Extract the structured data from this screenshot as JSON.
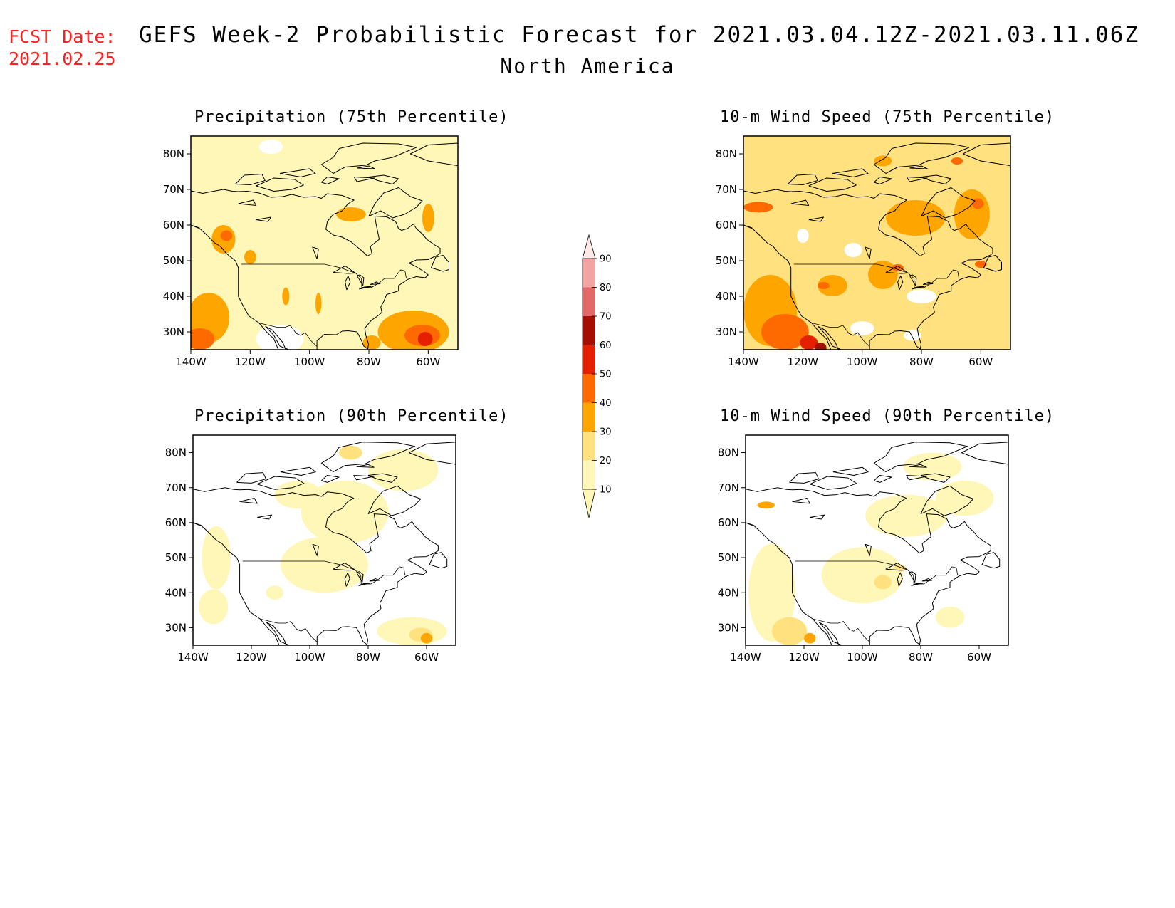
{
  "header": {
    "fcst_date_label": "FCST Date:",
    "fcst_date_value": "2021.02.25",
    "title": "GEFS Week-2 Probabilistic Forecast for 2021.03.04.12Z-2021.03.11.06Z",
    "subtitle": "North America"
  },
  "colors": {
    "fcst_date": "#ff2020",
    "scale": [
      "#ffffff",
      "#fff7b8",
      "#ffe27f",
      "#ffa500",
      "#ff6a00",
      "#e52000",
      "#a50f00",
      "#e36868",
      "#f4a3a3",
      "#fde8e8"
    ]
  },
  "colorbar": {
    "levels": [
      "10",
      "20",
      "30",
      "40",
      "50",
      "60",
      "70",
      "80",
      "90"
    ]
  },
  "axes": {
    "lon_labels": [
      "140W",
      "120W",
      "100W",
      "80W",
      "60W"
    ],
    "lat_labels": [
      "30N",
      "40N",
      "50N",
      "60N",
      "70N",
      "80N"
    ],
    "lon_values": [
      -140,
      -120,
      -100,
      -80,
      -60
    ],
    "lat_values": [
      30,
      40,
      50,
      60,
      70,
      80
    ],
    "lon_range": [
      -140,
      -50
    ],
    "lat_range": [
      25,
      85
    ]
  },
  "panels": [
    {
      "id": "precip75",
      "title": "Precipitation (75th Percentile)",
      "base_level": 1,
      "blobs": [
        {
          "lon": -134,
          "lat": 34,
          "rx": 7,
          "ry": 7,
          "level": 3
        },
        {
          "lon": -137,
          "lat": 28,
          "rx": 5,
          "ry": 3,
          "level": 4
        },
        {
          "lon": -129,
          "lat": 56,
          "rx": 4,
          "ry": 4,
          "level": 3
        },
        {
          "lon": -128,
          "lat": 57,
          "rx": 2,
          "ry": 1.5,
          "level": 4
        },
        {
          "lon": -86,
          "lat": 63,
          "rx": 5,
          "ry": 2,
          "level": 3
        },
        {
          "lon": -60,
          "lat": 62,
          "rx": 2,
          "ry": 4,
          "level": 3
        },
        {
          "lon": -65,
          "lat": 30,
          "rx": 12,
          "ry": 6,
          "level": 3
        },
        {
          "lon": -62,
          "lat": 29,
          "rx": 6,
          "ry": 3,
          "level": 4
        },
        {
          "lon": -61,
          "lat": 28,
          "rx": 2.5,
          "ry": 2,
          "level": 5
        },
        {
          "lon": -79,
          "lat": 27,
          "rx": 3,
          "ry": 2,
          "level": 3
        },
        {
          "lon": -108,
          "lat": 40,
          "rx": 1.2,
          "ry": 2.5,
          "level": 3
        },
        {
          "lon": -97,
          "lat": 38,
          "rx": 1,
          "ry": 3,
          "level": 3
        },
        {
          "lon": -120,
          "lat": 51,
          "rx": 2,
          "ry": 2,
          "level": 3
        }
      ],
      "holes": [
        {
          "lon": -110,
          "lat": 28,
          "rx": 8,
          "ry": 4
        },
        {
          "lon": -113,
          "lat": 82,
          "rx": 4,
          "ry": 2
        }
      ]
    },
    {
      "id": "wind75",
      "title": "10-m Wind Speed (75th Percentile)",
      "base_level": 2,
      "blobs": [
        {
          "lon": -135,
          "lat": 65,
          "rx": 5,
          "ry": 1.5,
          "level": 4
        },
        {
          "lon": -131,
          "lat": 36,
          "rx": 9,
          "ry": 10,
          "level": 3
        },
        {
          "lon": -126,
          "lat": 30,
          "rx": 8,
          "ry": 5,
          "level": 4
        },
        {
          "lon": -118,
          "lat": 27,
          "rx": 3,
          "ry": 2,
          "level": 5
        },
        {
          "lon": -114,
          "lat": 25.5,
          "rx": 2,
          "ry": 1.5,
          "level": 6
        },
        {
          "lon": -82,
          "lat": 62,
          "rx": 10,
          "ry": 5,
          "level": 3
        },
        {
          "lon": -63,
          "lat": 63,
          "rx": 6,
          "ry": 7,
          "level": 3
        },
        {
          "lon": -61,
          "lat": 66,
          "rx": 2,
          "ry": 1.5,
          "level": 4
        },
        {
          "lon": -93,
          "lat": 46,
          "rx": 5,
          "ry": 4,
          "level": 3
        },
        {
          "lon": -110,
          "lat": 43,
          "rx": 5,
          "ry": 3,
          "level": 3
        },
        {
          "lon": -113,
          "lat": 43,
          "rx": 2,
          "ry": 1,
          "level": 4
        },
        {
          "lon": -88,
          "lat": 48,
          "rx": 2,
          "ry": 1,
          "level": 4
        },
        {
          "lon": -68,
          "lat": 78,
          "rx": 2,
          "ry": 1,
          "level": 4
        },
        {
          "lon": -93,
          "lat": 78,
          "rx": 3,
          "ry": 1.5,
          "level": 3
        },
        {
          "lon": -60,
          "lat": 49,
          "rx": 2,
          "ry": 1,
          "level": 4
        }
      ],
      "holes": [
        {
          "lon": -103,
          "lat": 53,
          "rx": 3,
          "ry": 2
        },
        {
          "lon": -100,
          "lat": 31,
          "rx": 4,
          "ry": 2
        },
        {
          "lon": -80,
          "lat": 40,
          "rx": 5,
          "ry": 2
        },
        {
          "lon": -83,
          "lat": 29,
          "rx": 3,
          "ry": 1.5
        },
        {
          "lon": -120,
          "lat": 57,
          "rx": 2,
          "ry": 2
        }
      ]
    },
    {
      "id": "precip90",
      "title": "Precipitation (90th Percentile)",
      "base_level": 0,
      "blobs": [
        {
          "lon": -88,
          "lat": 63,
          "rx": 15,
          "ry": 9,
          "level": 1
        },
        {
          "lon": -95,
          "lat": 48,
          "rx": 15,
          "ry": 8,
          "level": 1
        },
        {
          "lon": -68,
          "lat": 75,
          "rx": 12,
          "ry": 6,
          "level": 1
        },
        {
          "lon": -65,
          "lat": 29,
          "rx": 12,
          "ry": 4,
          "level": 1
        },
        {
          "lon": -62,
          "lat": 28,
          "rx": 4,
          "ry": 2,
          "level": 2
        },
        {
          "lon": -60,
          "lat": 27,
          "rx": 2,
          "ry": 1.5,
          "level": 3
        },
        {
          "lon": -132,
          "lat": 50,
          "rx": 5,
          "ry": 9,
          "level": 1
        },
        {
          "lon": -133,
          "lat": 36,
          "rx": 5,
          "ry": 5,
          "level": 1
        },
        {
          "lon": -112,
          "lat": 40,
          "rx": 3,
          "ry": 2,
          "level": 1
        },
        {
          "lon": -104,
          "lat": 68,
          "rx": 8,
          "ry": 4,
          "level": 1
        },
        {
          "lon": -86,
          "lat": 80,
          "rx": 4,
          "ry": 2,
          "level": 2
        }
      ],
      "holes": []
    },
    {
      "id": "wind90",
      "title": "10-m Wind Speed (90th Percentile)",
      "base_level": 0,
      "blobs": [
        {
          "lon": -131,
          "lat": 40,
          "rx": 8,
          "ry": 14,
          "level": 1
        },
        {
          "lon": -125,
          "lat": 29,
          "rx": 6,
          "ry": 4,
          "level": 2
        },
        {
          "lon": -118,
          "lat": 27,
          "rx": 2,
          "ry": 1.5,
          "level": 3
        },
        {
          "lon": -100,
          "lat": 45,
          "rx": 14,
          "ry": 8,
          "level": 1
        },
        {
          "lon": -85,
          "lat": 62,
          "rx": 14,
          "ry": 6,
          "level": 1
        },
        {
          "lon": -133,
          "lat": 65,
          "rx": 3,
          "ry": 1,
          "level": 3
        },
        {
          "lon": -65,
          "lat": 67,
          "rx": 10,
          "ry": 5,
          "level": 1
        },
        {
          "lon": -93,
          "lat": 43,
          "rx": 3,
          "ry": 2,
          "level": 2
        },
        {
          "lon": -87,
          "lat": 47,
          "rx": 2,
          "ry": 1,
          "level": 2
        },
        {
          "lon": -76,
          "lat": 76,
          "rx": 10,
          "ry": 4,
          "level": 1
        },
        {
          "lon": -70,
          "lat": 33,
          "rx": 5,
          "ry": 3,
          "level": 1
        }
      ],
      "holes": []
    }
  ]
}
